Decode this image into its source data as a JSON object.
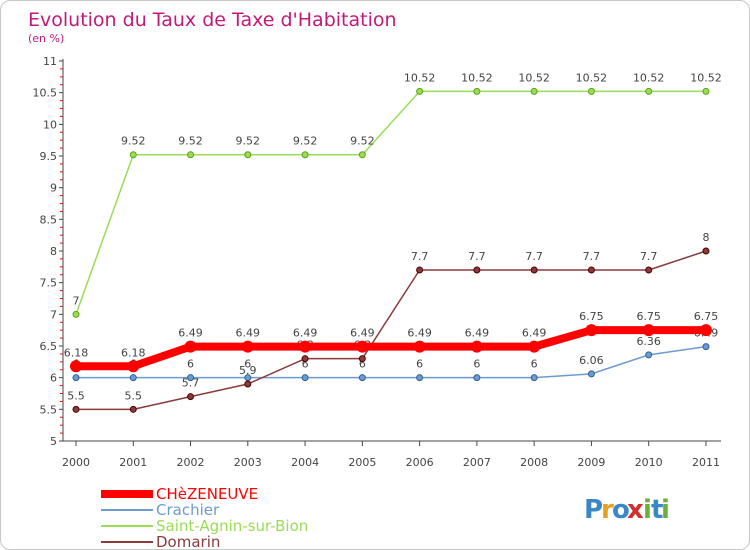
{
  "chart_data": {
    "type": "line",
    "title": "Evolution du Taux de Taxe d'Habitation",
    "ylabel": "(en %)",
    "xlabel": "",
    "x": [
      "2000",
      "2001",
      "2002",
      "2003",
      "2004",
      "2005",
      "2006",
      "2007",
      "2008",
      "2009",
      "2010",
      "2011"
    ],
    "ylim": [
      5,
      11
    ],
    "yticks": [
      "5",
      "5.5",
      "6",
      "6.5",
      "7",
      "7.5",
      "8",
      "8.5",
      "9",
      "9.5",
      "10",
      "10.5",
      "11"
    ],
    "grid": false,
    "legend_position": "bottom-left",
    "series": [
      {
        "name": "CHèZENEUVE",
        "color": "#ff0000",
        "values": [
          6.18,
          6.18,
          6.49,
          6.49,
          6.49,
          6.49,
          6.49,
          6.49,
          6.49,
          6.75,
          6.75,
          6.75
        ],
        "labels": [
          "6.18",
          "6.18",
          "6.49",
          "6.49",
          "6.49",
          "6.49",
          "6.49",
          "6.49",
          "6.49",
          "6.75",
          "6.75",
          "6.75"
        ]
      },
      {
        "name": "Crachier",
        "color": "#6b9bd1",
        "values": [
          6,
          6,
          6,
          6,
          6,
          6,
          6,
          6,
          6,
          6.06,
          6.36,
          6.49
        ],
        "labels": [
          "6",
          "6",
          "6",
          "6",
          "6",
          "6",
          "6",
          "6",
          "6",
          "6.06",
          "6.36",
          "6.49"
        ]
      },
      {
        "name": "Saint-Agnin-sur-Bion",
        "color": "#99dd55",
        "values": [
          7,
          9.52,
          9.52,
          9.52,
          9.52,
          9.52,
          10.52,
          10.52,
          10.52,
          10.52,
          10.52,
          10.52
        ],
        "labels": [
          "7",
          "9.52",
          "9.52",
          "9.52",
          "9.52",
          "9.52",
          "10.52",
          "10.52",
          "10.52",
          "10.52",
          "10.52",
          "10.52"
        ]
      },
      {
        "name": "Domarin",
        "color": "#8b3a3a",
        "values": [
          5.5,
          5.5,
          5.7,
          5.9,
          6.3,
          6.3,
          7.7,
          7.7,
          7.7,
          7.7,
          7.7,
          8
        ],
        "labels": [
          "5.5",
          "5.5",
          "5.7",
          "5.9",
          "6.3",
          "6.3",
          "7.7",
          "7.7",
          "7.7",
          "7.7",
          "7.7",
          "8"
        ]
      }
    ]
  },
  "logo": {
    "text": "Proxiti",
    "letters": [
      "P",
      "r",
      "o",
      "x",
      "i",
      "t",
      "i"
    ],
    "colors": [
      "#3a87c8",
      "#e8a020",
      "#3a87c8",
      "#d03030",
      "#6ab03a",
      "#3a87c8",
      "#6ab03a"
    ]
  }
}
